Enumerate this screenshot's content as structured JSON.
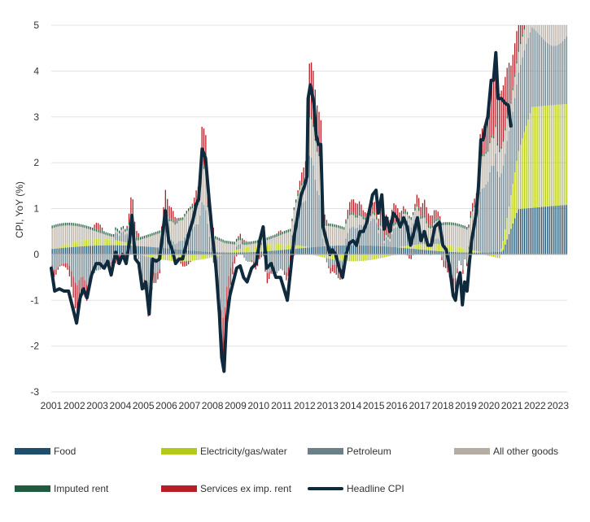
{
  "chart_data": {
    "type": "bar",
    "subtype": "stacked-bar-with-line",
    "title": "",
    "xlabel": "",
    "ylabel": "CPI, YoY (%)",
    "ylim": [
      -3,
      5
    ],
    "yticks": [
      "-3",
      "-2",
      "-1",
      "0",
      "1",
      "2",
      "3",
      "4",
      "5"
    ],
    "xlim": [
      2001.0,
      2023.4
    ],
    "xticks": [
      "2001",
      "2002",
      "2003",
      "2004",
      "2005",
      "2006",
      "2007",
      "2008",
      "2009",
      "2010",
      "2011",
      "2012",
      "2013",
      "2014",
      "2015",
      "2016",
      "2017",
      "2018",
      "2019",
      "2020",
      "2021",
      "2022",
      "2023"
    ],
    "grid": "horizontal",
    "legend_position": "bottom",
    "series": [
      {
        "name": "Food",
        "color": "#1c4f6e",
        "kind": "bar"
      },
      {
        "name": "Electricity/gas/water",
        "color": "#b5c918",
        "kind": "bar"
      },
      {
        "name": "Petroleum",
        "color": "#6b8089",
        "kind": "bar"
      },
      {
        "name": "All other goods",
        "color": "#b5aca2",
        "kind": "bar"
      },
      {
        "name": "Imputed rent",
        "color": "#1f5b3c",
        "kind": "bar"
      },
      {
        "name": "Services ex imp. rent",
        "color": "#b81c24",
        "kind": "bar"
      },
      {
        "name": "Headline CPI",
        "color": "#0f2a3d",
        "kind": "line"
      }
    ],
    "headline_points": [
      [
        2001.0,
        -0.3
      ],
      [
        2001.15,
        -0.8
      ],
      [
        2001.35,
        -0.75
      ],
      [
        2001.55,
        -0.8
      ],
      [
        2001.75,
        -0.8
      ],
      [
        2001.95,
        -1.2
      ],
      [
        2002.1,
        -1.5
      ],
      [
        2002.25,
        -0.95
      ],
      [
        2002.4,
        -0.75
      ],
      [
        2002.55,
        -0.95
      ],
      [
        2002.75,
        -0.45
      ],
      [
        2002.95,
        -0.2
      ],
      [
        2003.1,
        -0.2
      ],
      [
        2003.3,
        -0.3
      ],
      [
        2003.45,
        -0.15
      ],
      [
        2003.6,
        -0.45
      ],
      [
        2003.8,
        0.05
      ],
      [
        2003.95,
        -0.2
      ],
      [
        2004.1,
        0.0
      ],
      [
        2004.25,
        -0.2
      ],
      [
        2004.4,
        0.3
      ],
      [
        2004.5,
        0.85
      ],
      [
        2004.65,
        -0.1
      ],
      [
        2004.8,
        -0.2
      ],
      [
        2004.95,
        -0.75
      ],
      [
        2005.1,
        -0.6
      ],
      [
        2005.25,
        -1.3
      ],
      [
        2005.4,
        -0.1
      ],
      [
        2005.55,
        -0.15
      ],
      [
        2005.7,
        -0.1
      ],
      [
        2005.85,
        0.5
      ],
      [
        2005.95,
        0.95
      ],
      [
        2006.1,
        0.3
      ],
      [
        2006.25,
        0.1
      ],
      [
        2006.4,
        -0.2
      ],
      [
        2006.55,
        -0.1
      ],
      [
        2006.7,
        -0.1
      ],
      [
        2006.85,
        0.2
      ],
      [
        2007.0,
        0.5
      ],
      [
        2007.15,
        0.75
      ],
      [
        2007.3,
        1.1
      ],
      [
        2007.4,
        1.2
      ],
      [
        2007.55,
        2.3
      ],
      [
        2007.7,
        2.1
      ],
      [
        2007.85,
        1.2
      ],
      [
        2008.0,
        0.4
      ],
      [
        2008.15,
        -0.3
      ],
      [
        2008.3,
        -1.3
      ],
      [
        2008.4,
        -2.25
      ],
      [
        2008.5,
        -2.55
      ],
      [
        2008.6,
        -1.5
      ],
      [
        2008.75,
        -0.9
      ],
      [
        2008.9,
        -0.6
      ],
      [
        2009.05,
        -0.3
      ],
      [
        2009.2,
        -0.25
      ],
      [
        2009.35,
        -0.5
      ],
      [
        2009.5,
        -0.6
      ],
      [
        2009.7,
        -0.3
      ],
      [
        2009.9,
        -0.2
      ],
      [
        2010.05,
        0.3
      ],
      [
        2010.2,
        0.6
      ],
      [
        2010.35,
        -0.3
      ],
      [
        2010.55,
        -0.2
      ],
      [
        2010.75,
        -0.5
      ],
      [
        2010.95,
        -0.5
      ],
      [
        2011.1,
        -0.75
      ],
      [
        2011.25,
        -1.0
      ],
      [
        2011.4,
        -0.3
      ],
      [
        2011.55,
        0.4
      ],
      [
        2011.7,
        0.85
      ],
      [
        2011.85,
        1.3
      ],
      [
        2012.0,
        1.5
      ],
      [
        2012.1,
        1.7
      ],
      [
        2012.15,
        3.4
      ],
      [
        2012.25,
        3.7
      ],
      [
        2012.4,
        3.3
      ],
      [
        2012.5,
        2.6
      ],
      [
        2012.6,
        2.4
      ],
      [
        2012.7,
        2.4
      ],
      [
        2012.8,
        0.6
      ],
      [
        2012.95,
        0.3
      ],
      [
        2013.1,
        0.0
      ],
      [
        2013.2,
        0.1
      ],
      [
        2013.35,
        0.0
      ],
      [
        2013.5,
        -0.3
      ],
      [
        2013.65,
        -0.5
      ],
      [
        2013.8,
        0.0
      ],
      [
        2013.95,
        0.25
      ],
      [
        2014.1,
        0.3
      ],
      [
        2014.25,
        0.2
      ],
      [
        2014.4,
        0.5
      ],
      [
        2014.55,
        0.5
      ],
      [
        2014.7,
        0.7
      ],
      [
        2014.85,
        1.05
      ],
      [
        2014.95,
        1.3
      ],
      [
        2015.1,
        1.4
      ],
      [
        2015.2,
        0.9
      ],
      [
        2015.35,
        1.3
      ],
      [
        2015.45,
        0.55
      ],
      [
        2015.55,
        0.8
      ],
      [
        2015.7,
        0.5
      ],
      [
        2015.85,
        0.9
      ],
      [
        2016.0,
        0.8
      ],
      [
        2016.15,
        0.6
      ],
      [
        2016.3,
        0.8
      ],
      [
        2016.45,
        0.6
      ],
      [
        2016.6,
        0.2
      ],
      [
        2016.75,
        0.5
      ],
      [
        2016.9,
        0.8
      ],
      [
        2017.05,
        0.3
      ],
      [
        2017.2,
        0.5
      ],
      [
        2017.35,
        0.2
      ],
      [
        2017.5,
        0.2
      ],
      [
        2017.65,
        0.6
      ],
      [
        2017.85,
        0.7
      ],
      [
        2018.0,
        0.2
      ],
      [
        2018.15,
        0.1
      ],
      [
        2018.3,
        -0.3
      ],
      [
        2018.45,
        -0.9
      ],
      [
        2018.55,
        -1.0
      ],
      [
        2018.65,
        -0.6
      ],
      [
        2018.75,
        -0.4
      ],
      [
        2018.85,
        -1.1
      ],
      [
        2018.95,
        -0.6
      ],
      [
        2019.05,
        -0.8
      ],
      [
        2019.15,
        -0.2
      ],
      [
        2019.25,
        0.3
      ],
      [
        2019.35,
        0.6
      ],
      [
        2019.45,
        0.9
      ],
      [
        2019.55,
        1.5
      ],
      [
        2019.65,
        2.5
      ],
      [
        2019.75,
        2.5
      ],
      [
        2019.85,
        2.8
      ],
      [
        2019.95,
        3.0
      ],
      [
        2020.1,
        3.8
      ],
      [
        2020.2,
        3.8
      ],
      [
        2020.3,
        4.4
      ],
      [
        2020.4,
        3.4
      ],
      [
        2020.55,
        3.4
      ],
      [
        2020.7,
        3.3
      ],
      [
        2020.85,
        3.25
      ],
      [
        2020.95,
        2.8
      ]
    ],
    "note": "Monthly contribution bars from 2001 to 2023 stacked by category; headline CPI line overlaid."
  },
  "legend": {
    "food": "Food",
    "electricity": "Electricity/gas/water",
    "petroleum": "Petroleum",
    "other_goods": "All other goods",
    "imputed_rent": "Imputed rent",
    "services": "Services ex imp. rent",
    "headline": "Headline CPI"
  }
}
